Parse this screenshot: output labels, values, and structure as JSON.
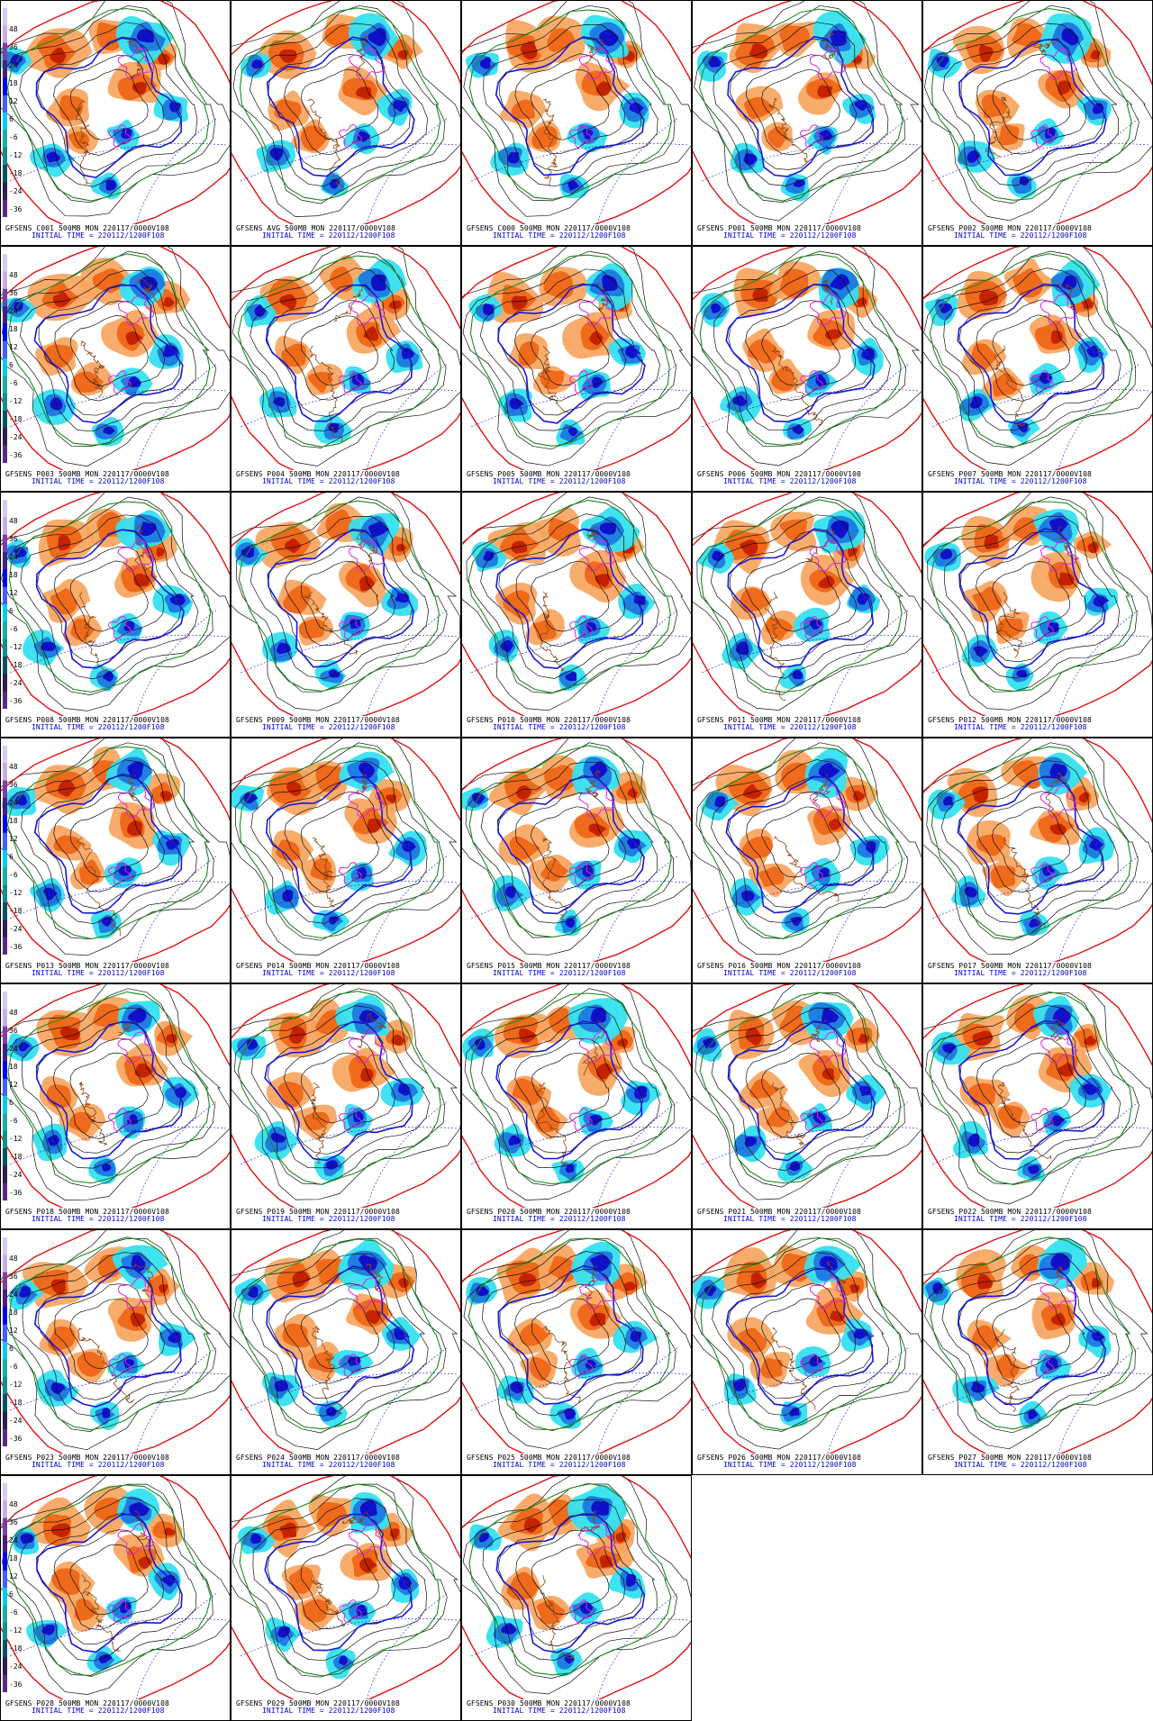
{
  "panels": [
    {
      "member": "C001",
      "caption": "GFSENS C001 500MB MON 220117/0000V108",
      "initial": "INITIAL TIME = 220112/1200F108"
    },
    {
      "member": "AVG",
      "caption": "GFSENS AVG 500MB MON 220117/0000V108",
      "initial": "INITIAL TIME = 220112/1200F108"
    },
    {
      "member": "C000",
      "caption": "GFSENS C000 500MB MON 220117/0000V108",
      "initial": "INITIAL TIME = 220112/1200F108"
    },
    {
      "member": "P001",
      "caption": "GFSENS P001 500MB MON 220117/0000V108",
      "initial": "INITIAL TIME = 220112/1200F108"
    },
    {
      "member": "P002",
      "caption": "GFSENS P002 500MB MON 220117/0000V108",
      "initial": "INITIAL TIME = 220112/1200F108"
    },
    {
      "member": "P003",
      "caption": "GFSENS P003 500MB MON 220117/0000V108",
      "initial": "INITIAL TIME = 220112/1200F108"
    },
    {
      "member": "P004",
      "caption": "GFSENS P004 500MB MON 220117/0000V108",
      "initial": "INITIAL TIME = 220112/1200F108"
    },
    {
      "member": "P005",
      "caption": "GFSENS P005 500MB MON 220117/0000V108",
      "initial": "INITIAL TIME = 220112/1200F108"
    },
    {
      "member": "P006",
      "caption": "GFSENS P006 500MB MON 220117/0000V108",
      "initial": "INITIAL TIME = 220112/1200F108"
    },
    {
      "member": "P007",
      "caption": "GFSENS P007 500MB MON 220117/0000V108",
      "initial": "INITIAL TIME = 220112/1200F108"
    },
    {
      "member": "P008",
      "caption": "GFSENS P008 500MB MON 220117/0000V108",
      "initial": "INITIAL TIME = 220112/1200F108"
    },
    {
      "member": "P009",
      "caption": "GFSENS P009 500MB MON 220117/0000V108",
      "initial": "INITIAL TIME = 220112/1200F108"
    },
    {
      "member": "P010",
      "caption": "GFSENS P010 500MB MON 220117/0000V108",
      "initial": "INITIAL TIME = 220112/1200F108"
    },
    {
      "member": "P011",
      "caption": "GFSENS P011 500MB MON 220117/0000V108",
      "initial": "INITIAL TIME = 220112/1200F108"
    },
    {
      "member": "P012",
      "caption": "GFSENS P012 500MB MON 220117/0000V108",
      "initial": "INITIAL TIME = 220112/1200F108"
    },
    {
      "member": "P013",
      "caption": "GFSENS P013 500MB MON 220117/0000V108",
      "initial": "INITIAL TIME = 220112/1200F108"
    },
    {
      "member": "P014",
      "caption": "GFSENS P014 500MB MON 220117/0000V108",
      "initial": "INITIAL TIME = 220112/1200F108"
    },
    {
      "member": "P015",
      "caption": "GFSENS P015 500MB MON 220117/0000V108",
      "initial": "INITIAL TIME = 220112/1200F108"
    },
    {
      "member": "P016",
      "caption": "GFSENS P016 500MB MON 220117/0000V108",
      "initial": "INITIAL TIME = 220112/1200F108"
    },
    {
      "member": "P017",
      "caption": "GFSENS P017 500MB MON 220117/0000V108",
      "initial": "INITIAL TIME = 220112/1200F108"
    },
    {
      "member": "P018",
      "caption": "GFSENS P018 500MB MON 220117/0000V108",
      "initial": "INITIAL TIME = 220112/1200F108"
    },
    {
      "member": "P019",
      "caption": "GFSENS P019 500MB MON 220117/0000V108",
      "initial": "INITIAL TIME = 220112/1200F108"
    },
    {
      "member": "P020",
      "caption": "GFSENS P020 500MB MON 220117/0000V108",
      "initial": "INITIAL TIME = 220112/1200F108"
    },
    {
      "member": "P021",
      "caption": "GFSENS P021 500MB MON 220117/0000V108",
      "initial": "INITIAL TIME = 220112/1200F108"
    },
    {
      "member": "P022",
      "caption": "GFSENS P022 500MB MON 220117/0000V108",
      "initial": "INITIAL TIME = 220112/1200F108"
    },
    {
      "member": "P023",
      "caption": "GFSENS P023 500MB MON 220117/0000V108",
      "initial": "INITIAL TIME = 220112/1200F108"
    },
    {
      "member": "P024",
      "caption": "GFSENS P024 500MB MON 220117/0000V108",
      "initial": "INITIAL TIME = 220112/1200F108"
    },
    {
      "member": "P025",
      "caption": "GFSENS P025 500MB MON 220117/0000V108",
      "initial": "INITIAL TIME = 220112/1200F108"
    },
    {
      "member": "P026",
      "caption": "GFSENS P026 500MB MON 220117/0000V108",
      "initial": "INITIAL TIME = 220112/1200F108"
    },
    {
      "member": "P027",
      "caption": "GFSENS P027 500MB MON 220117/0000V108",
      "initial": "INITIAL TIME = 220112/1200F108"
    },
    {
      "member": "P028",
      "caption": "GFSENS P028 500MB MON 220117/0000V108",
      "initial": "INITIAL TIME = 220112/1200F108"
    },
    {
      "member": "P029",
      "caption": "GFSENS P029 500MB MON 220117/0000V108",
      "initial": "INITIAL TIME = 220112/1200F108"
    },
    {
      "member": "P030",
      "caption": "GFSENS P030 500MB MON 220117/0000V108",
      "initial": "INITIAL TIME = 220112/1200F108"
    }
  ],
  "colorbar": {
    "labels": [
      "48",
      "36",
      "24",
      "18",
      "12",
      "6",
      "-6",
      "-12",
      "-18",
      "-24",
      "-36"
    ],
    "colors": [
      "#d7ccec",
      "#c9aee0",
      "#7b3fa8",
      "#4a1f7a",
      "#0000ff",
      "#4060ff",
      "#00ccee",
      "#22aaaa",
      "#0f8f8f",
      "#005566",
      "#302050",
      "#5a2a8a"
    ]
  },
  "palette": {
    "warm_light": "#f7a35c",
    "warm_mid": "#ef6a1b",
    "warm_dark": "#c42200",
    "cold_light": "#35e0f0",
    "cold_mid": "#1f7fe0",
    "cold_dark": "#1010c8",
    "contour_black": "#111111",
    "contour_green": "#1a8a1a",
    "contour_red": "#e01010",
    "contour_blue": "#1818d8",
    "contour_magenta": "#e020e0",
    "coast": "#8b4513"
  }
}
